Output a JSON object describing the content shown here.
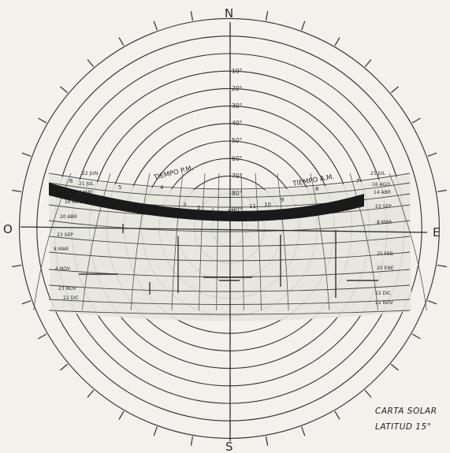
{
  "cardinals": {
    "north": "N",
    "south": "S",
    "east": "E",
    "west": "O"
  },
  "altitude_labels": [
    "90°",
    "80°",
    "70°",
    "60°",
    "50°",
    "40°",
    "30°",
    "20°",
    "10°"
  ],
  "section_labels": {
    "pm": "TIEMPO P.M.",
    "am": "TIEMPO A.M."
  },
  "hour_labels": [
    "6",
    "5",
    "4",
    "3",
    "2",
    "1",
    "12",
    "11",
    "10",
    "9",
    "8",
    "7"
  ],
  "date_labels_left": [
    "22 JUN",
    "21 JUL",
    "24 MAY",
    "16 AGO",
    "20 ABR",
    "23 SEP",
    "8 MAR",
    "4 NOV",
    "23 NOV",
    "22 DIC"
  ],
  "date_labels_right": [
    "21 JUL",
    "16 AGO",
    "14 ABR",
    "23 SEP",
    "8 MAR",
    "25 FEB",
    "20 ENE",
    "22 DIC",
    "22 NOV"
  ],
  "caption": {
    "line1": "CARTA SOLAR",
    "line2": "LATITUD 15°"
  },
  "colors": {
    "ink": "#2e2e2e",
    "band": "#1a1a1a",
    "paper": "#f2f1ec",
    "fill": "#e6e5df"
  }
}
